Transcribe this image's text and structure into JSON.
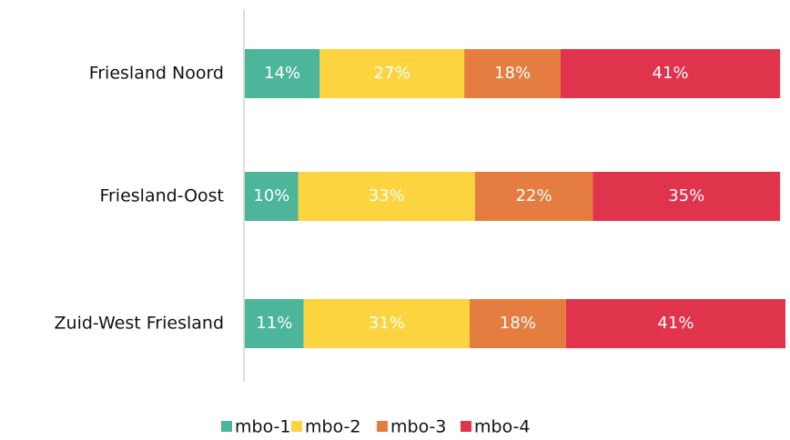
{
  "chart_data": {
    "type": "stacked-bar-horizontal",
    "categories": [
      "Friesland Noord",
      "Friesland-Oost",
      "Zuid-West Friesland"
    ],
    "series": [
      {
        "name": "mbo-1",
        "color": "#4cb59a",
        "values": [
          14,
          10,
          11
        ],
        "value_labels": [
          "14%",
          "10%",
          "11%"
        ]
      },
      {
        "name": "mbo-2",
        "color": "#fcd440",
        "values": [
          27,
          33,
          31
        ],
        "value_labels": [
          "27%",
          "33%",
          "31%"
        ]
      },
      {
        "name": "mbo-3",
        "color": "#e57d41",
        "values": [
          18,
          22,
          18
        ],
        "value_labels": [
          "18%",
          "22%",
          "18%"
        ]
      },
      {
        "name": "mbo-4",
        "color": "#e0334c",
        "values": [
          41,
          35,
          41
        ],
        "value_labels": [
          "41%",
          "35%",
          "41%"
        ]
      }
    ],
    "legend": "bottom"
  }
}
